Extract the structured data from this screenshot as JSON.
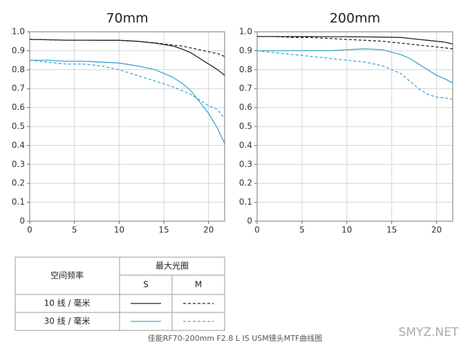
{
  "chart_data": [
    {
      "type": "line",
      "title": "70mm",
      "x": [
        0,
        2,
        4,
        6,
        8,
        10,
        12,
        14,
        16,
        17,
        18,
        19,
        20,
        21,
        21.8
      ],
      "xlim": [
        0,
        21.8
      ],
      "xticks": [
        0,
        5,
        10,
        15,
        20
      ],
      "ylim": [
        0,
        1
      ],
      "yticks": [
        0,
        0.1,
        0.2,
        0.3,
        0.4,
        0.5,
        0.6,
        0.7,
        0.8,
        0.9,
        {
          "value": 1,
          "label": "1.0"
        }
      ],
      "grid": true,
      "series": [
        {
          "color": "#222222",
          "dash": false,
          "values": [
            0.96,
            0.958,
            0.956,
            0.956,
            0.955,
            0.955,
            0.95,
            0.94,
            0.925,
            0.91,
            0.89,
            0.86,
            0.83,
            0.8,
            0.77
          ]
        },
        {
          "color": "#222222",
          "dash": true,
          "values": [
            0.96,
            0.958,
            0.956,
            0.956,
            0.955,
            0.955,
            0.95,
            0.942,
            0.93,
            0.925,
            0.915,
            0.905,
            0.895,
            0.885,
            0.87
          ]
        },
        {
          "color": "#3aa6d0",
          "dash": false,
          "values": [
            0.85,
            0.85,
            0.845,
            0.845,
            0.84,
            0.835,
            0.82,
            0.8,
            0.76,
            0.73,
            0.69,
            0.63,
            0.57,
            0.49,
            0.41
          ]
        },
        {
          "color": "#3aa6d0",
          "dash": true,
          "values": [
            0.85,
            0.84,
            0.83,
            0.83,
            0.82,
            0.8,
            0.77,
            0.74,
            0.71,
            0.69,
            0.67,
            0.64,
            0.61,
            0.59,
            0.54
          ]
        }
      ]
    },
    {
      "type": "line",
      "title": "200mm",
      "x": [
        0,
        2,
        4,
        6,
        8,
        10,
        12,
        14,
        16,
        17,
        18,
        19,
        20,
        21,
        21.8
      ],
      "xlim": [
        0,
        21.8
      ],
      "xticks": [
        0,
        5,
        10,
        15,
        20
      ],
      "ylim": [
        0,
        1
      ],
      "yticks": [
        0,
        0.1,
        0.2,
        0.3,
        0.4,
        0.5,
        0.6,
        0.7,
        0.8,
        0.9,
        {
          "value": 1,
          "label": "1.0"
        }
      ],
      "grid": true,
      "series": [
        {
          "color": "#222222",
          "dash": false,
          "values": [
            0.975,
            0.975,
            0.975,
            0.975,
            0.974,
            0.974,
            0.973,
            0.972,
            0.97,
            0.965,
            0.96,
            0.955,
            0.95,
            0.945,
            0.935
          ]
        },
        {
          "color": "#222222",
          "dash": true,
          "values": [
            0.975,
            0.975,
            0.97,
            0.97,
            0.965,
            0.96,
            0.955,
            0.95,
            0.94,
            0.935,
            0.93,
            0.925,
            0.92,
            0.915,
            0.91
          ]
        },
        {
          "color": "#3aa6d0",
          "dash": false,
          "values": [
            0.9,
            0.9,
            0.9,
            0.9,
            0.9,
            0.905,
            0.91,
            0.905,
            0.88,
            0.86,
            0.83,
            0.8,
            0.77,
            0.75,
            0.73
          ]
        },
        {
          "color": "#3aa6d0",
          "dash": true,
          "values": [
            0.9,
            0.89,
            0.88,
            0.87,
            0.86,
            0.85,
            0.84,
            0.82,
            0.78,
            0.74,
            0.7,
            0.67,
            0.655,
            0.65,
            0.645
          ]
        }
      ]
    }
  ],
  "legend_table": {
    "header": "空间频率",
    "group": "最大光圈",
    "columns": [
      "S",
      "M"
    ],
    "rows": [
      "10 线 / 毫米",
      "30 线 / 毫米"
    ]
  },
  "caption": "佳能RF70-200mm F2.8 L IS USM镜头MTF曲线图",
  "watermark": "SMYZ.NET"
}
